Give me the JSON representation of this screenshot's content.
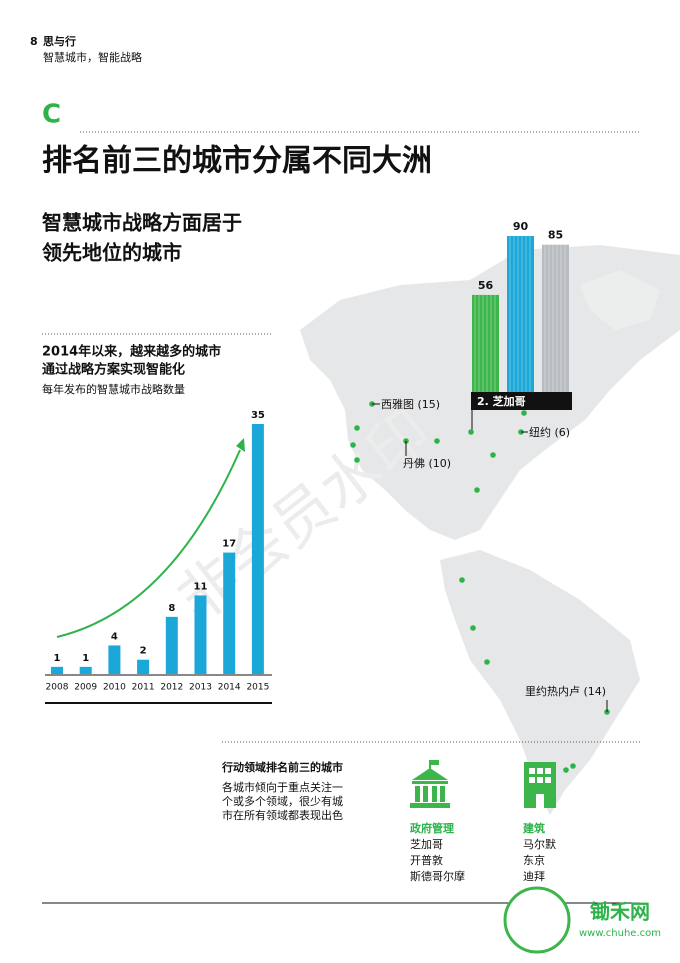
{
  "header": {
    "page_number": "8",
    "title": "思与行",
    "subtitle": "智慧城市，智能战略"
  },
  "section": {
    "letter": "C",
    "heading": "排名前三的城市分属不同大洲",
    "subheading": [
      "智慧城市战略方面居于",
      "领先地位的城市"
    ]
  },
  "chart_data": [
    {
      "type": "bar",
      "title": [
        "2014年以来，越来越多的城市",
        "通过战略方案实现智能化"
      ],
      "subtitle": "每年发布的智慧城市战略数量",
      "categories": [
        "2008",
        "2009",
        "2010",
        "2011",
        "2012",
        "2013",
        "2014",
        "2015"
      ],
      "values": [
        1,
        1,
        4,
        2,
        8,
        11,
        17,
        35
      ],
      "color": "#1ba8d8",
      "trend_color": "#2db34a"
    },
    {
      "type": "podium",
      "label": "2. 芝加哥",
      "values": [
        56,
        90,
        85
      ],
      "colors": [
        "#3cb54a",
        "#1ba8d8",
        "#b8bcc0"
      ]
    }
  ],
  "map": {
    "cities": [
      "西雅图 (15)",
      "丹佛 (10)",
      "纽约 (6)",
      "里约热内卢 (14)"
    ]
  },
  "domains": {
    "title": "行动领域排名前三的城市",
    "description": [
      "各城市倾向于重点关注一",
      "个或多个领域，很少有城",
      "市在所有领域都表现出色"
    ],
    "groups": [
      {
        "name": "政府管理",
        "cities": [
          "芝加哥",
          "开普敦",
          "斯德哥尔摩"
        ]
      },
      {
        "name": "建筑",
        "cities": [
          "马尔默",
          "东京",
          "迪拜"
        ]
      }
    ]
  },
  "watermark": "非会员水印",
  "logo": {
    "name": "锄禾网",
    "url": "www.chuhe.com"
  }
}
